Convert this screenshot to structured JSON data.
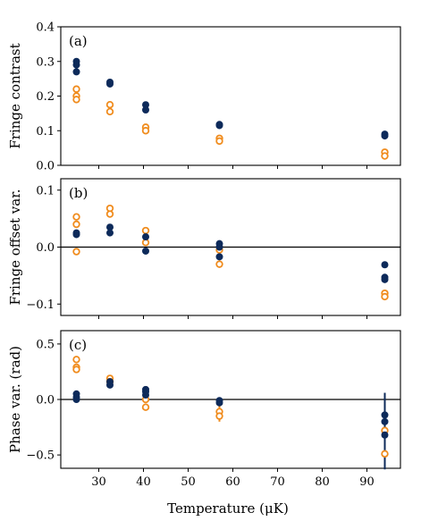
{
  "chart_data": {
    "type": "scatter",
    "x_label": "Temperature (μK)",
    "x_ticks": [
      30,
      40,
      50,
      60,
      70,
      80,
      90
    ],
    "xlim": [
      21.5,
      97.5
    ],
    "colors": {
      "filled": "#0d2a5a",
      "open": "#f08c1e"
    },
    "panels": [
      {
        "tag": "(a)",
        "ylabel": "Fringe contrast",
        "ylim": [
          0,
          0.4
        ],
        "yticks": [
          0.0,
          0.1,
          0.2,
          0.3,
          0.4
        ],
        "yticklabels": [
          "0.0",
          "0.1",
          "0.2",
          "0.3",
          "0.4"
        ],
        "zero_line": false,
        "series": [
          {
            "style": "filled",
            "points": [
              [
                25,
                0.3
              ],
              [
                25,
                0.29
              ],
              [
                25,
                0.27
              ],
              [
                32.5,
                0.24
              ],
              [
                32.5,
                0.235
              ],
              [
                40.5,
                0.175
              ],
              [
                40.5,
                0.16
              ],
              [
                57,
                0.118
              ],
              [
                57,
                0.115
              ],
              [
                94,
                0.09
              ],
              [
                94,
                0.085
              ]
            ]
          },
          {
            "style": "open",
            "points": [
              [
                25,
                0.22
              ],
              [
                25,
                0.2
              ],
              [
                25,
                0.19
              ],
              [
                32.5,
                0.175
              ],
              [
                32.5,
                0.155
              ],
              [
                40.5,
                0.11
              ],
              [
                40.5,
                0.1
              ],
              [
                57,
                0.078
              ],
              [
                57,
                0.07
              ],
              [
                94,
                0.038
              ],
              [
                94,
                0.027
              ]
            ]
          }
        ]
      },
      {
        "tag": "(b)",
        "ylabel": "Fringe offset var.",
        "ylim": [
          -0.12,
          0.12
        ],
        "yticks": [
          -0.1,
          0.0,
          0.1
        ],
        "yticklabels": [
          "−0.1",
          "0.0",
          "0.1"
        ],
        "zero_line": true,
        "series": [
          {
            "style": "filled",
            "points": [
              [
                25,
                0.022
              ],
              [
                25,
                0.025
              ],
              [
                32.5,
                0.035
              ],
              [
                32.5,
                0.025
              ],
              [
                40.5,
                0.018
              ],
              [
                40.5,
                -0.007
              ],
              [
                57,
                0.006
              ],
              [
                57,
                0.0
              ],
              [
                57,
                -0.017
              ],
              [
                94,
                -0.031
              ],
              [
                94,
                -0.053
              ],
              [
                94,
                -0.057
              ]
            ]
          },
          {
            "style": "open",
            "points": [
              [
                25,
                0.053
              ],
              [
                25,
                0.04
              ],
              [
                25,
                -0.008
              ],
              [
                32.5,
                0.068
              ],
              [
                32.5,
                0.058
              ],
              [
                40.5,
                0.029
              ],
              [
                40.5,
                0.008
              ],
              [
                57,
                -0.005
              ],
              [
                57,
                -0.03
              ],
              [
                94,
                -0.081
              ],
              [
                94,
                -0.087
              ]
            ]
          }
        ]
      },
      {
        "tag": "(c)",
        "ylabel": "Phase var. (rad)",
        "ylim": [
          -0.62,
          0.62
        ],
        "yticks": [
          -0.5,
          0.0,
          0.5
        ],
        "yticklabels": [
          "−0.5",
          "0.0",
          "0.5"
        ],
        "zero_line": true,
        "series": [
          {
            "style": "filled",
            "points": [
              [
                25,
                0.05
              ],
              [
                25,
                0.02
              ],
              [
                25,
                0.0
              ],
              [
                32.5,
                0.16
              ],
              [
                32.5,
                0.13
              ],
              [
                40.5,
                0.09
              ],
              [
                40.5,
                0.07
              ],
              [
                40.5,
                0.04
              ],
              [
                57,
                -0.01
              ],
              [
                57,
                -0.03
              ],
              [
                94,
                -0.14
              ],
              [
                94,
                -0.2
              ],
              [
                94,
                -0.32
              ]
            ]
          },
          {
            "style": "open",
            "points": [
              [
                25,
                0.36
              ],
              [
                25,
                0.29
              ],
              [
                25,
                0.27
              ],
              [
                32.5,
                0.19
              ],
              [
                32.5,
                0.16
              ],
              [
                40.5,
                0.0
              ],
              [
                40.5,
                -0.07
              ],
              [
                57,
                -0.11
              ],
              [
                57,
                -0.15
              ],
              [
                94,
                -0.28
              ],
              [
                94,
                -0.49
              ]
            ]
          }
        ],
        "error_bars": [
          {
            "style": "filled",
            "x": 94,
            "y": -0.28,
            "low": -0.63,
            "high": 0.06
          },
          {
            "style": "open",
            "x": 57,
            "y": -0.13,
            "low": -0.2,
            "high": -0.06
          }
        ]
      }
    ]
  }
}
